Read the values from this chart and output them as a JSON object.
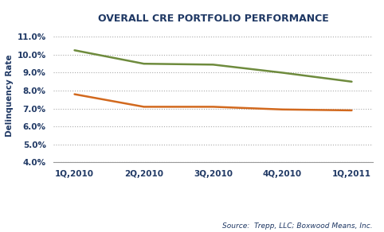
{
  "title": "OVERALL CRE PORTFOLIO PERFORMANCE",
  "title_color": "#1F3864",
  "categories": [
    "1Q,2010",
    "2Q,2010",
    "3Q,2010",
    "4Q,2010",
    "1Q,2011"
  ],
  "large_banks": [
    0.1025,
    0.095,
    0.0945,
    0.09,
    0.085
  ],
  "community_banks": [
    0.078,
    0.071,
    0.071,
    0.0695,
    0.069
  ],
  "large_banks_color": "#6E8B3D",
  "community_banks_color": "#D2691E",
  "ylabel": "Delinquency Rate",
  "ylim": [
    0.04,
    0.115
  ],
  "yticks": [
    0.04,
    0.05,
    0.06,
    0.07,
    0.08,
    0.09,
    0.1,
    0.11
  ],
  "ytick_labels": [
    "4.0%",
    "5.0%",
    "6.0%",
    "7.0%",
    "8.0%",
    "9.0%",
    "10.0%",
    "11.0%"
  ],
  "source_text": "Source:  Trepp, LLC; Boxwood Means, Inc.",
  "background_color": "#ffffff",
  "grid_color": "#aaaaaa",
  "line_width": 1.8,
  "title_fontsize": 9,
  "tick_fontsize": 7.5,
  "ylabel_fontsize": 7.5
}
